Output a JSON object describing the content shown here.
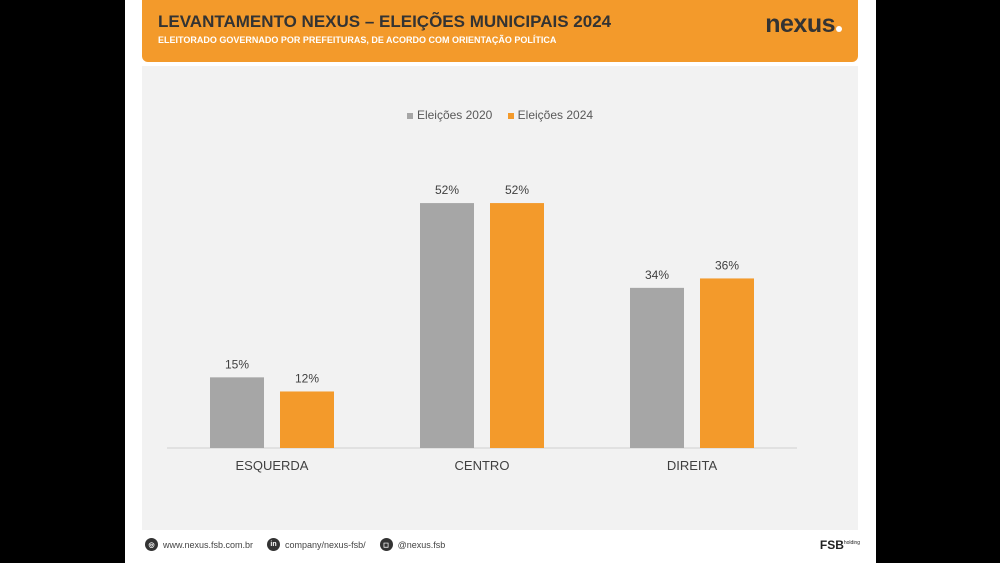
{
  "header": {
    "title": "LEVANTAMENTO NEXUS – ELEIÇÕES MUNICIPAIS 2024",
    "subtitle": "ELEITORADO GOVERNADO POR PREFEITURAS, DE ACORDO COM ORIENTAÇÃO POLÍTICA",
    "logo": "nexus"
  },
  "footer": {
    "website": "www.nexus.fsb.com.br",
    "linkedin": "company/nexus-fsb/",
    "instagram": "@nexus.fsb",
    "brand": "FSB",
    "brand_sup": "holding"
  },
  "chart_data": {
    "type": "bar",
    "title": "",
    "categories": [
      "ESQUERDA",
      "CENTRO",
      "DIREITA"
    ],
    "series": [
      {
        "name": "Eleições 2020",
        "values": [
          15,
          52,
          34
        ],
        "color": "#a6a6a6"
      },
      {
        "name": "Eleições 2024",
        "values": [
          12,
          52,
          36
        ],
        "color": "#f39a2b"
      }
    ],
    "ylim": [
      0,
      60
    ],
    "legend": "top-center",
    "grid": false
  }
}
